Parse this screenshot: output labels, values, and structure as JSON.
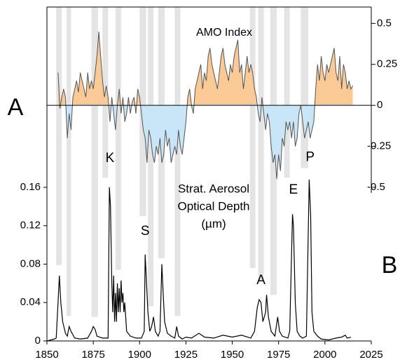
{
  "chart_data": [
    {
      "type": "area",
      "title": "AMO Index",
      "panel_label": "A",
      "x": [
        1856,
        1857,
        1858,
        1859,
        1860,
        1861,
        1862,
        1863,
        1864,
        1865,
        1866,
        1867,
        1868,
        1869,
        1870,
        1871,
        1872,
        1873,
        1874,
        1875,
        1876,
        1877,
        1878,
        1879,
        1880,
        1881,
        1882,
        1883,
        1884,
        1885,
        1886,
        1887,
        1888,
        1889,
        1890,
        1891,
        1892,
        1893,
        1894,
        1895,
        1896,
        1897,
        1898,
        1899,
        1900,
        1901,
        1902,
        1903,
        1904,
        1905,
        1906,
        1907,
        1908,
        1909,
        1910,
        1911,
        1912,
        1913,
        1914,
        1915,
        1916,
        1917,
        1918,
        1919,
        1920,
        1921,
        1922,
        1923,
        1924,
        1925,
        1926,
        1927,
        1928,
        1929,
        1930,
        1931,
        1932,
        1933,
        1934,
        1935,
        1936,
        1937,
        1938,
        1939,
        1940,
        1941,
        1942,
        1943,
        1944,
        1945,
        1946,
        1947,
        1948,
        1949,
        1950,
        1951,
        1952,
        1953,
        1954,
        1955,
        1956,
        1957,
        1958,
        1959,
        1960,
        1961,
        1962,
        1963,
        1964,
        1965,
        1966,
        1967,
        1968,
        1969,
        1970,
        1971,
        1972,
        1973,
        1974,
        1975,
        1976,
        1977,
        1978,
        1979,
        1980,
        1981,
        1982,
        1983,
        1984,
        1985,
        1986,
        1987,
        1988,
        1989,
        1990,
        1991,
        1992,
        1993,
        1994,
        1995,
        1996,
        1997,
        1998,
        1999,
        2000,
        2001,
        2002,
        2003,
        2004,
        2005,
        2006,
        2007,
        2008,
        2009,
        2010,
        2011,
        2012,
        2013,
        2014,
        2015
      ],
      "values": [
        0.2,
        -0.02,
        0.05,
        0.1,
        0.05,
        -0.2,
        -0.05,
        -0.15,
        0.05,
        0.1,
        0.15,
        0.08,
        0.2,
        0.15,
        0.1,
        0.05,
        0.2,
        0.1,
        0.15,
        0.1,
        0.2,
        0.3,
        0.45,
        0.3,
        0.15,
        0.05,
        0.12,
        0.05,
        -0.1,
        0.05,
        -0.05,
        -0.15,
        0.0,
        0.1,
        -0.05,
        0.05,
        -0.1,
        -0.05,
        0.05,
        -0.05,
        0.02,
        0.05,
        -0.05,
        0.1,
        0.05,
        -0.05,
        -0.15,
        -0.2,
        -0.35,
        -0.15,
        -0.2,
        -0.3,
        -0.35,
        -0.25,
        -0.3,
        -0.2,
        -0.35,
        -0.3,
        -0.15,
        -0.25,
        -0.2,
        -0.35,
        -0.3,
        -0.25,
        -0.3,
        -0.15,
        -0.25,
        -0.3,
        -0.2,
        -0.1,
        0.05,
        0.1,
        0.0,
        -0.05,
        0.1,
        0.15,
        0.2,
        0.25,
        0.1,
        0.2,
        0.15,
        0.3,
        0.35,
        0.25,
        0.2,
        0.15,
        0.1,
        0.2,
        0.3,
        0.35,
        0.25,
        0.2,
        0.15,
        0.25,
        0.2,
        0.3,
        0.35,
        0.4,
        0.2,
        0.25,
        0.1,
        0.2,
        0.3,
        0.2,
        0.25,
        0.2,
        0.1,
        0.05,
        -0.05,
        -0.1,
        0.05,
        -0.05,
        -0.15,
        -0.05,
        -0.1,
        -0.25,
        -0.35,
        -0.3,
        -0.45,
        -0.3,
        -0.4,
        -0.2,
        -0.25,
        -0.1,
        -0.15,
        -0.1,
        -0.2,
        -0.1,
        -0.25,
        -0.2,
        -0.05,
        0.0,
        -0.1,
        -0.2,
        -0.15,
        -0.1,
        -0.2,
        -0.15,
        -0.1,
        0.1,
        0.25,
        0.15,
        0.3,
        0.2,
        0.15,
        0.25,
        0.2,
        0.25,
        0.3,
        0.35,
        0.2,
        0.15,
        0.3,
        0.1,
        0.25,
        0.2,
        0.1,
        0.15,
        0.1,
        0.12
      ],
      "positive_color": "#f9c996",
      "negative_color": "#c8e6f7",
      "line_color": "#555555",
      "ylim": [
        -0.5,
        0.6
      ],
      "yticks": [
        0.5,
        0.25,
        0,
        -0.25,
        -0.5
      ]
    },
    {
      "type": "line",
      "title": [
        "Strat. Aerosol",
        "Optical Depth",
        "(µm)"
      ],
      "panel_label": "B",
      "x": [
        1850,
        1852,
        1854,
        1855,
        1856,
        1856.7,
        1857.5,
        1858.5,
        1860,
        1861,
        1862,
        1863,
        1865,
        1868,
        1872,
        1874,
        1875,
        1876,
        1877,
        1880,
        1883,
        1883.7,
        1884.3,
        1885,
        1885.5,
        1886,
        1886.5,
        1887,
        1887.5,
        1888,
        1888.5,
        1889,
        1889.5,
        1890,
        1890.5,
        1891,
        1891.5,
        1892,
        1893,
        1895,
        1898,
        1901,
        1902.5,
        1903,
        1903.5,
        1904.5,
        1905.5,
        1906.5,
        1907.5,
        1908.5,
        1910,
        1911,
        1912,
        1912.7,
        1913.5,
        1915,
        1917,
        1919,
        1920,
        1921,
        1923,
        1925,
        1928,
        1932,
        1935,
        1940,
        1945,
        1950,
        1955,
        1960,
        1962,
        1963.5,
        1964.5,
        1965.5,
        1966.5,
        1968,
        1968.5,
        1969.5,
        1971,
        1973,
        1974.5,
        1975.5,
        1977,
        1980,
        1981,
        1982.5,
        1983,
        1984,
        1985,
        1986.5,
        1988,
        1990,
        1991.5,
        1992.3,
        1993,
        1994,
        1996,
        1998,
        2002,
        2006,
        2009,
        2011,
        2012,
        2014
      ],
      "values": [
        0,
        0.001,
        0.002,
        0.003,
        0.04,
        0.068,
        0.04,
        0.02,
        0.008,
        0.005,
        0.015,
        0.01,
        0.003,
        0.002,
        0.003,
        0.01,
        0.015,
        0.012,
        0.005,
        0.003,
        0.003,
        0.16,
        0.14,
        0.06,
        0.03,
        0.068,
        0.02,
        0.05,
        0.02,
        0.06,
        0.03,
        0.055,
        0.03,
        0.063,
        0.04,
        0.05,
        0.03,
        0.04,
        0.01,
        0.005,
        0.003,
        0.003,
        0.01,
        0.09,
        0.07,
        0.03,
        0.01,
        0.015,
        0.025,
        0.01,
        0.005,
        0.01,
        0.08,
        0.05,
        0.02,
        0.008,
        0.005,
        0.003,
        0.015,
        0.005,
        0.002,
        0.004,
        0.003,
        0.008,
        0.004,
        0.003,
        0.006,
        0.004,
        0.006,
        0.003,
        0.01,
        0.035,
        0.043,
        0.04,
        0.02,
        0.03,
        0.048,
        0.025,
        0.01,
        0.005,
        0.025,
        0.01,
        0.005,
        0.003,
        0.01,
        0.132,
        0.12,
        0.04,
        0.01,
        0.005,
        0.003,
        0.005,
        0.168,
        0.13,
        0.03,
        0.01,
        0.005,
        0.002,
        0.001,
        0.003,
        0.004,
        0.006,
        0.003,
        0.004
      ],
      "color": "#000000",
      "xlim": [
        1850,
        2025
      ],
      "xticks": [
        1850,
        1875,
        1900,
        1925,
        1950,
        1975,
        2000,
        2025
      ],
      "ylim": [
        0,
        0.16
      ],
      "yticks": [
        0,
        0.04,
        0.08,
        0.12,
        0.16
      ],
      "annotations": [
        {
          "text": "K",
          "x": 1884,
          "y": 0.19
        },
        {
          "text": "S",
          "x": 1903,
          "y": 0.114
        },
        {
          "text": "A",
          "x": 1965.5,
          "y": 0.063
        },
        {
          "text": "E",
          "x": 1983,
          "y": 0.157
        },
        {
          "text": "P",
          "x": 1992,
          "y": 0.191
        }
      ],
      "shading": {
        "color": "#e4e4e4",
        "periods": [
          [
            1855,
            1858,
            0.079
          ],
          [
            1860.6,
            1863,
            0.026
          ],
          [
            1874,
            1877.5,
            0.025
          ],
          [
            1880,
            1883,
            0.17
          ],
          [
            1887,
            1890,
            0.074
          ],
          [
            1900,
            1903.5,
            0.13
          ],
          [
            1904.5,
            1907.5,
            0.036
          ],
          [
            1910,
            1913.5,
            0.086
          ],
          [
            1919,
            1922,
            0.026
          ],
          [
            1959.5,
            1962.5,
            0.076
          ],
          [
            1964,
            1967,
            0.063
          ],
          [
            1970.5,
            1974,
            0.048
          ],
          [
            1978,
            1981,
            0.17
          ],
          [
            1987,
            1991,
            0.18
          ]
        ]
      }
    }
  ]
}
